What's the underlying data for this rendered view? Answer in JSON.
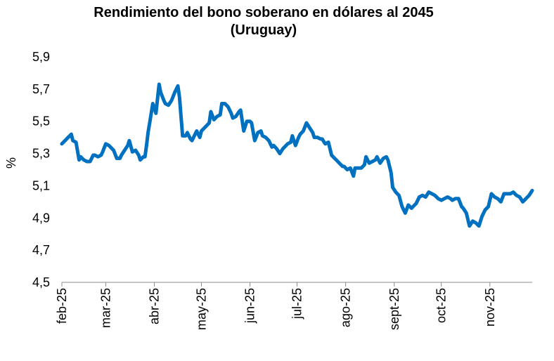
{
  "chart_data": {
    "type": "line",
    "title": "Rendimiento del bono soberano en dólares al 2045",
    "subtitle": "(Uruguay)",
    "ylabel": "%",
    "xlabel": "",
    "ylim": [
      4.5,
      5.9
    ],
    "yticks": [
      4.5,
      4.7,
      4.9,
      5.1,
      5.3,
      5.5,
      5.7,
      5.9
    ],
    "ytick_labels": [
      "4,5",
      "4,7",
      "4,9",
      "5,1",
      "5,3",
      "5,5",
      "5,7",
      "5,9"
    ],
    "xlim": [
      "2025-02-01",
      "2025-11-28"
    ],
    "xticks": [
      "2025-02-01",
      "2025-03-01",
      "2025-04-01",
      "2025-05-01",
      "2025-06-01",
      "2025-07-01",
      "2025-08-01",
      "2025-09-01",
      "2025-10-01",
      "2025-11-01"
    ],
    "xtick_labels": [
      "feb-25",
      "mar-25",
      "abr-25",
      "may-25",
      "jun-25",
      "jul-25",
      "ago-25",
      "sept-25",
      "oct-25",
      "nov-25"
    ],
    "grid": false,
    "legend": "none",
    "series_color": "#0070C0",
    "series": [
      {
        "x": [
          "2025-02-01",
          "2025-02-03",
          "2025-02-05",
          "2025-02-07",
          "2025-02-08",
          "2025-02-10",
          "2025-02-12",
          "2025-02-13",
          "2025-02-15",
          "2025-02-17",
          "2025-02-19",
          "2025-02-21",
          "2025-02-22",
          "2025-02-24",
          "2025-02-26",
          "2025-02-27",
          "2025-03-01",
          "2025-03-03",
          "2025-03-05",
          "2025-03-06",
          "2025-03-08",
          "2025-03-10",
          "2025-03-11",
          "2025-03-13",
          "2025-03-15",
          "2025-03-16",
          "2025-03-18",
          "2025-03-20",
          "2025-03-22",
          "2025-03-23",
          "2025-03-25",
          "2025-03-26",
          "2025-03-27",
          "2025-03-28",
          "2025-03-29",
          "2025-03-31",
          "2025-04-02",
          "2025-04-04",
          "2025-04-05",
          "2025-04-07",
          "2025-04-08",
          "2025-04-10",
          "2025-04-12",
          "2025-04-14",
          "2025-04-16",
          "2025-04-17",
          "2025-04-19",
          "2025-04-21",
          "2025-04-22",
          "2025-04-24",
          "2025-04-25",
          "2025-04-27",
          "2025-04-28",
          "2025-04-30",
          "2025-05-01",
          "2025-05-02",
          "2025-05-04",
          "2025-05-06",
          "2025-05-07",
          "2025-05-09",
          "2025-05-11",
          "2025-05-13",
          "2025-05-14",
          "2025-05-16",
          "2025-05-18",
          "2025-05-20",
          "2025-05-21",
          "2025-05-23",
          "2025-05-25",
          "2025-05-26",
          "2025-05-28",
          "2025-05-30",
          "2025-06-01",
          "2025-06-02",
          "2025-06-04",
          "2025-06-06",
          "2025-06-08",
          "2025-06-09",
          "2025-06-11",
          "2025-06-13",
          "2025-06-15",
          "2025-06-16",
          "2025-06-18",
          "2025-06-20",
          "2025-06-22",
          "2025-06-24",
          "2025-06-25",
          "2025-06-27",
          "2025-06-28",
          "2025-06-30",
          "2025-07-02",
          "2025-07-03",
          "2025-07-05",
          "2025-07-07",
          "2025-07-09",
          "2025-07-11",
          "2025-07-12",
          "2025-07-14",
          "2025-07-16",
          "2025-07-17",
          "2025-07-19",
          "2025-07-21",
          "2025-07-23",
          "2025-07-25",
          "2025-07-26",
          "2025-07-28",
          "2025-07-30",
          "2025-07-31",
          "2025-08-02",
          "2025-08-04",
          "2025-08-06",
          "2025-08-07",
          "2025-08-09",
          "2025-08-11",
          "2025-08-13",
          "2025-08-14",
          "2025-08-16",
          "2025-08-18",
          "2025-08-20",
          "2025-08-21",
          "2025-08-23",
          "2025-08-25",
          "2025-08-27",
          "2025-08-28",
          "2025-08-30",
          "2025-08-31",
          "2025-09-02",
          "2025-09-04",
          "2025-09-06",
          "2025-09-08",
          "2025-09-10",
          "2025-09-12",
          "2025-09-13",
          "2025-09-15",
          "2025-09-17",
          "2025-09-19",
          "2025-09-21",
          "2025-09-23",
          "2025-09-25",
          "2025-09-27",
          "2025-09-29",
          "2025-10-01",
          "2025-10-03",
          "2025-10-05",
          "2025-10-07",
          "2025-10-08",
          "2025-10-10",
          "2025-10-12",
          "2025-10-14",
          "2025-10-15",
          "2025-10-17",
          "2025-10-19",
          "2025-10-21",
          "2025-10-23",
          "2025-10-25",
          "2025-10-27",
          "2025-10-29",
          "2025-10-31",
          "2025-11-02",
          "2025-11-04",
          "2025-11-06",
          "2025-11-08",
          "2025-11-10",
          "2025-11-12",
          "2025-11-14",
          "2025-11-16",
          "2025-11-18",
          "2025-11-20",
          "2025-11-22",
          "2025-11-24",
          "2025-11-26",
          "2025-11-28"
        ],
        "values": [
          5.36,
          5.38,
          5.4,
          5.42,
          5.38,
          5.37,
          5.26,
          5.28,
          5.26,
          5.25,
          5.25,
          5.29,
          5.29,
          5.28,
          5.29,
          5.31,
          5.36,
          5.35,
          5.33,
          5.32,
          5.27,
          5.27,
          5.29,
          5.32,
          5.35,
          5.38,
          5.31,
          5.32,
          5.29,
          5.26,
          5.28,
          5.28,
          5.35,
          5.43,
          5.49,
          5.61,
          5.55,
          5.73,
          5.68,
          5.63,
          5.61,
          5.6,
          5.63,
          5.68,
          5.72,
          5.65,
          5.41,
          5.41,
          5.43,
          5.39,
          5.38,
          5.42,
          5.44,
          5.4,
          5.44,
          5.45,
          5.47,
          5.49,
          5.56,
          5.51,
          5.53,
          5.54,
          5.61,
          5.61,
          5.59,
          5.55,
          5.52,
          5.53,
          5.56,
          5.57,
          5.44,
          5.5,
          5.5,
          5.49,
          5.38,
          5.43,
          5.44,
          5.41,
          5.4,
          5.38,
          5.34,
          5.35,
          5.33,
          5.3,
          5.33,
          5.35,
          5.36,
          5.37,
          5.41,
          5.35,
          5.4,
          5.42,
          5.44,
          5.49,
          5.46,
          5.43,
          5.4,
          5.4,
          5.39,
          5.39,
          5.36,
          5.37,
          5.29,
          5.27,
          5.26,
          5.24,
          5.22,
          5.22,
          5.2,
          5.21,
          5.16,
          5.21,
          5.21,
          5.21,
          5.23,
          5.28,
          5.24,
          5.25,
          5.26,
          5.28,
          5.24,
          5.27,
          5.28,
          5.26,
          5.18,
          5.09,
          5.06,
          5.04,
          4.97,
          4.93,
          4.98,
          4.96,
          4.97,
          4.99,
          5.03,
          5.04,
          5.03,
          5.06,
          5.05,
          5.04,
          5.02,
          5.01,
          5.02,
          5.03,
          5.02,
          5.01,
          5.02,
          5.02,
          4.97,
          4.96,
          4.93,
          4.85,
          4.88,
          4.87,
          4.85,
          4.91,
          4.95,
          4.97,
          5.05,
          5.03,
          5.02,
          5.0,
          5.05,
          5.05,
          5.05,
          5.06,
          5.04,
          5.03,
          5.0,
          5.02,
          5.04,
          5.07
        ]
      }
    ]
  }
}
